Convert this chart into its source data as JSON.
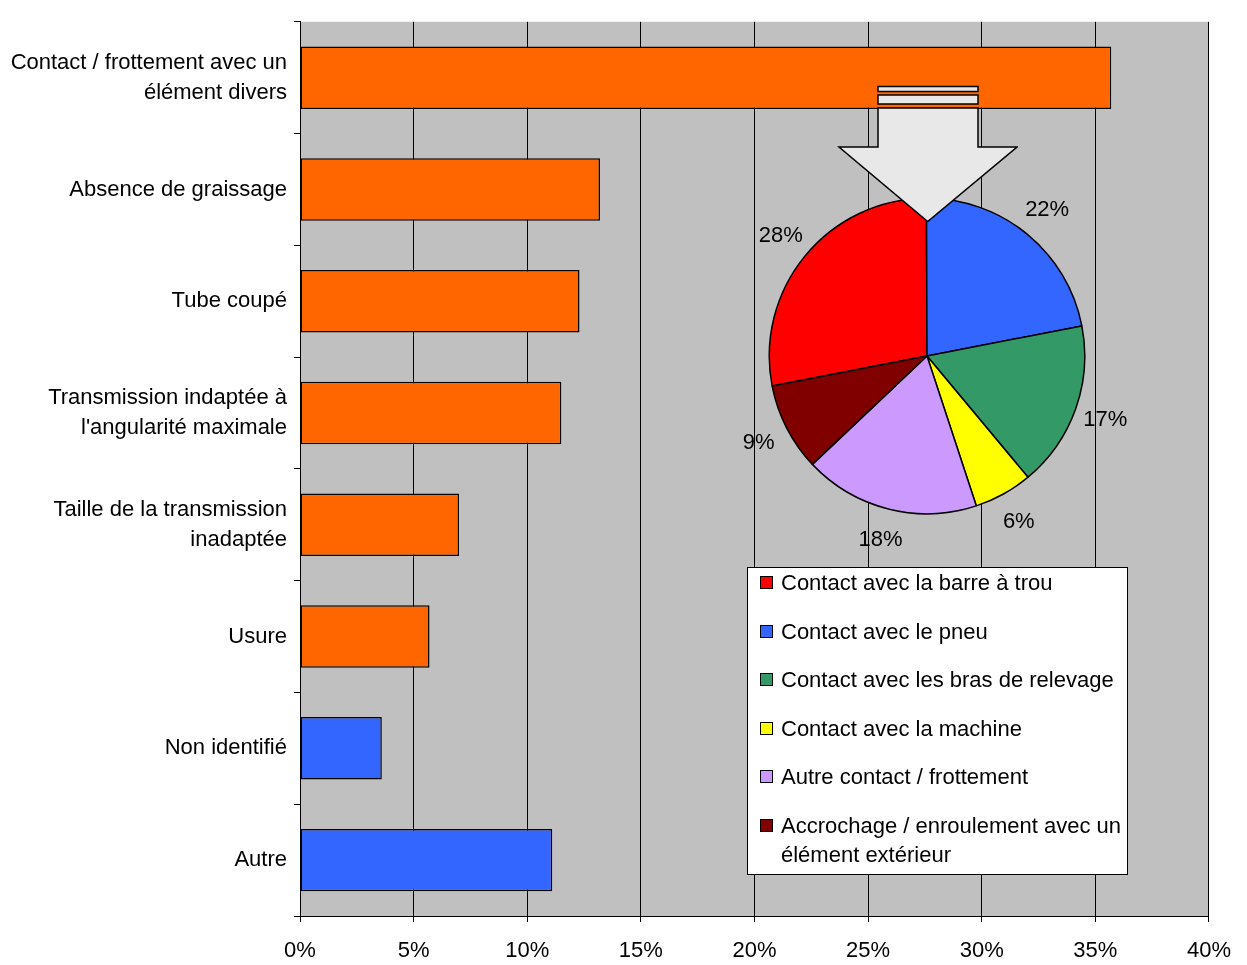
{
  "chart_data": [
    {
      "type": "bar",
      "orientation": "horizontal",
      "categories": [
        "Contact / frottement avec un élément divers",
        "Absence de graissage",
        "Tube coupé",
        "Transmission indaptée à l'angularité maximale",
        "Taille de la transmission inadaptée",
        "Usure",
        "Non identifié",
        "Autre"
      ],
      "values": [
        35.7,
        13.2,
        12.3,
        11.5,
        7.0,
        5.7,
        3.6,
        11.1
      ],
      "colors": [
        "#ff6600",
        "#ff6600",
        "#ff6600",
        "#ff6600",
        "#ff6600",
        "#ff6600",
        "#3366ff",
        "#3366ff"
      ],
      "xlim": [
        0,
        40
      ],
      "xticks": [
        {
          "value": 0,
          "label": "0%"
        },
        {
          "value": 5,
          "label": "5%"
        },
        {
          "value": 10,
          "label": "10%"
        },
        {
          "value": 15,
          "label": "15%"
        },
        {
          "value": 20,
          "label": "20%"
        },
        {
          "value": 25,
          "label": "25%"
        },
        {
          "value": 30,
          "label": "30%"
        },
        {
          "value": 35,
          "label": "35%"
        },
        {
          "value": 40,
          "label": "40%"
        }
      ],
      "grid": "x"
    },
    {
      "type": "pie",
      "categories": [
        "Contact avec la barre à trou",
        "Contact avec le pneu",
        "Contact avec les bras de relevage",
        "Contact avec la machine",
        "Autre contact / frottement",
        "Accrochage / enroulement avec un élément extérieur"
      ],
      "values": [
        28,
        22,
        17,
        6,
        18,
        9
      ],
      "colors": [
        "#ff0000",
        "#3366ff",
        "#339966",
        "#ffff00",
        "#cc99ff",
        "#800000"
      ],
      "value_labels": [
        "28%",
        "22%",
        "17%",
        "6%",
        "18%",
        "9%"
      ],
      "legend": "bottom"
    }
  ]
}
